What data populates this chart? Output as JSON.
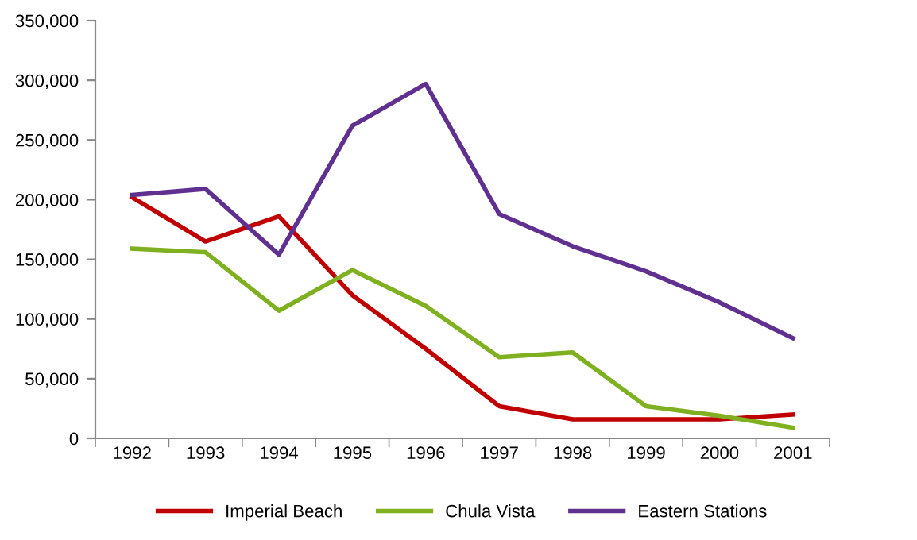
{
  "chart_data": {
    "type": "line",
    "categories": [
      "1992",
      "1993",
      "1994",
      "1995",
      "1996",
      "1997",
      "1998",
      "1999",
      "2000",
      "2001"
    ],
    "series": [
      {
        "name": "Imperial Beach",
        "color": "#c00000",
        "values": [
          202000,
          165000,
          186000,
          120000,
          75000,
          27000,
          16000,
          16000,
          16000,
          20000
        ]
      },
      {
        "name": "Chula Vista",
        "color": "#7fb020",
        "values": [
          159000,
          156000,
          107000,
          141000,
          111000,
          68000,
          72000,
          27000,
          19000,
          9000
        ]
      },
      {
        "name": "Eastern Stations",
        "color": "#603090",
        "values": [
          204000,
          209000,
          154000,
          262000,
          297000,
          188000,
          161000,
          140000,
          114000,
          84000
        ]
      }
    ],
    "ylim": [
      0,
      350000
    ],
    "yticks": [
      {
        "value": 0,
        "label": "0"
      },
      {
        "value": 50000,
        "label": "50,000"
      },
      {
        "value": 100000,
        "label": "100,000"
      },
      {
        "value": 150000,
        "label": "150,000"
      },
      {
        "value": 200000,
        "label": "200,000"
      },
      {
        "value": 250000,
        "label": "250,000"
      },
      {
        "value": 300000,
        "label": "300,000"
      },
      {
        "value": 350000,
        "label": "350,000"
      }
    ],
    "grid": false,
    "legend": "bottom",
    "marker": "none",
    "line_style": "solid"
  }
}
